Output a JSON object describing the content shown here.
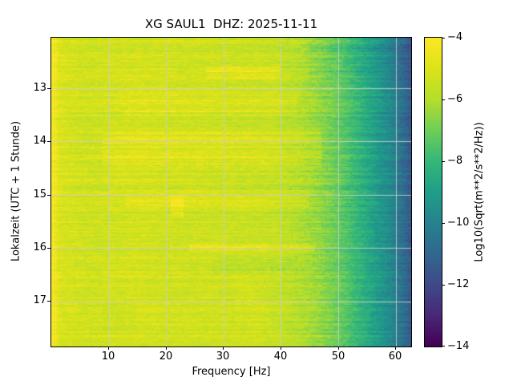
{
  "chart_data": {
    "type": "heatmap",
    "title": "XG SAUL1  DHZ: 2025-11-11",
    "xlabel": "Frequency [Hz]",
    "ylabel": "Lokalzeit (UTC + 1 Stunde)",
    "colorbar_label": "Log10(Sqrt(m**2/s**2/Hz))",
    "x_range": [
      0,
      62.7
    ],
    "x_ticks": [
      10,
      20,
      30,
      40,
      50,
      60
    ],
    "x_tick_labels": [
      "10",
      "20",
      "30",
      "40",
      "50",
      "60"
    ],
    "y_range": [
      12.05,
      17.85
    ],
    "y_ticks": [
      13,
      14,
      15,
      16,
      17
    ],
    "y_tick_labels": [
      "13",
      "14",
      "15",
      "16",
      "17"
    ],
    "z_range": [
      -14,
      -4
    ],
    "z_ticks": [
      -4,
      -6,
      -8,
      -10,
      -12,
      -14
    ],
    "z_tick_labels": [
      "−4",
      "−6",
      "−8",
      "−10",
      "−12",
      "−14"
    ],
    "grid": true,
    "grid_color": "#cccccc",
    "colormap": {
      "name": "viridis",
      "stops": [
        "#440154",
        "#482878",
        "#3e4a89",
        "#31688e",
        "#26828e",
        "#1f9e89",
        "#35b779",
        "#6ece58",
        "#b5de2b",
        "#dce319",
        "#fde725"
      ]
    },
    "spectrum_profile": {
      "comment": "mean Log10(Sqrt(m**2/s**2/Hz)) versus frequency, estimated from pixel colors",
      "freqs": [
        0,
        0.7,
        1.2,
        2,
        4,
        7,
        10,
        15,
        20,
        25,
        30,
        35,
        38,
        41,
        44,
        47,
        50,
        53,
        56,
        59,
        61,
        62.2,
        62.7
      ],
      "values": [
        -4.3,
        -4.4,
        -4.9,
        -5.1,
        -5.25,
        -5.35,
        -5.25,
        -5.2,
        -5.3,
        -5.35,
        -5.4,
        -5.45,
        -5.5,
        -5.7,
        -6.05,
        -6.5,
        -7.1,
        -7.9,
        -8.8,
        -9.7,
        -10.6,
        -11.2,
        -11.7
      ]
    },
    "noise": {
      "seed": 7,
      "row_amp": 0.33,
      "cell_amp": 0.72,
      "cell_change_prob": 0.3,
      "time_rows": 231
    },
    "events": [
      {
        "t0": 12.58,
        "t1": 12.82,
        "f0": 27,
        "f1": 40,
        "boost": 1.0,
        "density": 0.6
      },
      {
        "t0": 13.02,
        "t1": 13.5,
        "f0": 12,
        "f1": 43,
        "boost": 0.55,
        "density": 0.5
      },
      {
        "t0": 13.82,
        "t1": 14.5,
        "f0": 9,
        "f1": 47,
        "boost": 0.7,
        "density": 0.55
      },
      {
        "t0": 14.92,
        "t1": 15.25,
        "f0": 13,
        "f1": 45,
        "boost": 0.6,
        "density": 0.5
      },
      {
        "t0": 15.02,
        "t1": 15.45,
        "f0": 20.8,
        "f1": 23,
        "boost": 0.85,
        "density": 0.9
      },
      {
        "t0": 15.93,
        "t1": 16.1,
        "f0": 24,
        "f1": 46,
        "boost": 0.8,
        "density": 0.6
      },
      {
        "t0": 12.08,
        "t1": 12.95,
        "f0": 45,
        "f1": 62.7,
        "boost": -0.55,
        "density": 0.6
      },
      {
        "t0": 16.18,
        "t1": 16.5,
        "f0": 28,
        "f1": 43,
        "boost": -0.45,
        "density": 0.5
      },
      {
        "t0": 17.0,
        "t1": 17.55,
        "f0": 9,
        "f1": 15,
        "boost": -0.3,
        "density": 0.7
      },
      {
        "t0": 16.5,
        "t1": 17.85,
        "f0": 32,
        "f1": 37,
        "boost": 0.3,
        "density": 0.7
      },
      {
        "t0": 14.55,
        "t1": 14.75,
        "f0": 25,
        "f1": 40,
        "boost": -0.35,
        "density": 0.5
      }
    ]
  }
}
